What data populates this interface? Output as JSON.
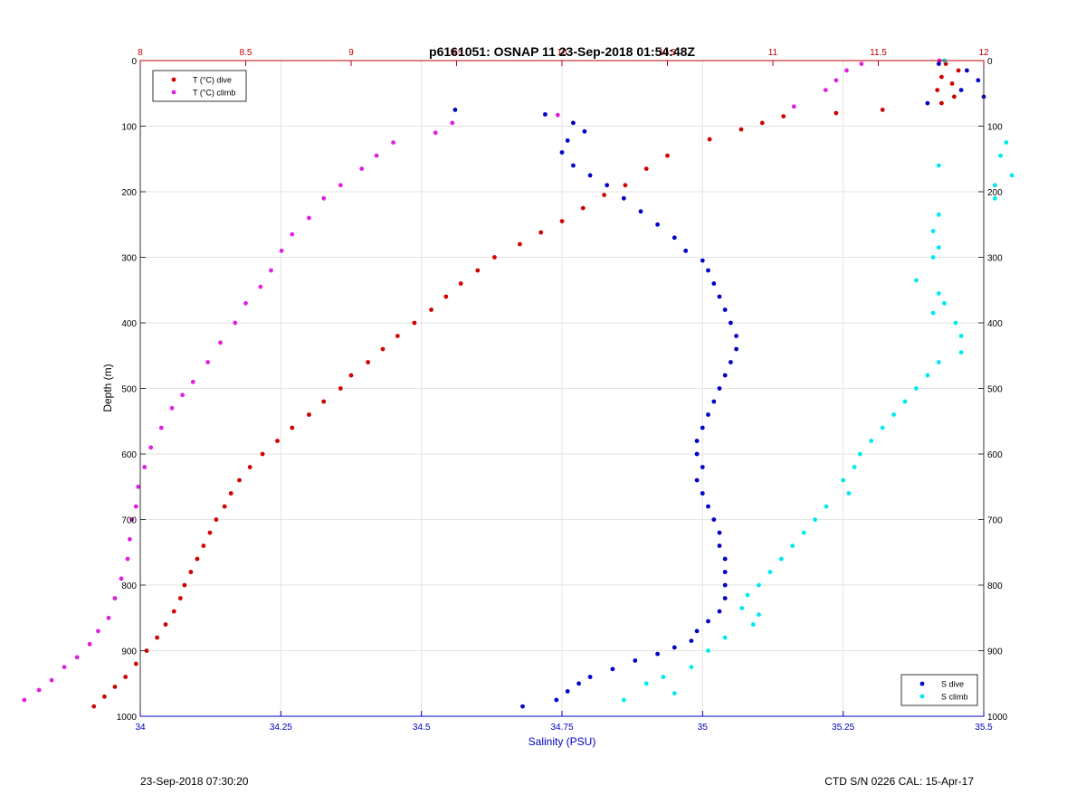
{
  "chart_data": {
    "type": "scatter",
    "title": "p6161051: OSNAP 11 23-Sep-2018 01:54:48Z",
    "ylabel": "Depth (m)",
    "xlabel": "Salinity (PSU)",
    "y_axis": {
      "range": [
        0,
        1000
      ],
      "reversed": true,
      "ticks": [
        0,
        100,
        200,
        300,
        400,
        500,
        600,
        700,
        800,
        900,
        1000
      ],
      "tick_labels": [
        "0",
        "100",
        "200",
        "300",
        "400",
        "500",
        "600",
        "700",
        "800",
        "900",
        "1000"
      ]
    },
    "salinity_axis": {
      "range": [
        34,
        35.5
      ],
      "position": "bottom",
      "color": "#0000c0",
      "ticks": [
        34,
        34.25,
        34.5,
        34.75,
        35,
        35.25,
        35.5
      ],
      "tick_labels": [
        "34",
        "34.25",
        "34.5",
        "34.75",
        "35",
        "35.25",
        "35.5"
      ]
    },
    "temperature_axis": {
      "range": [
        8,
        12
      ],
      "position": "top",
      "color": "#c00000",
      "ticks": [
        8,
        8.5,
        9,
        9.5,
        10,
        10.5,
        11,
        11.5,
        12
      ],
      "tick_labels": [
        "8",
        "8.5",
        "9",
        "9.5",
        "10",
        "10.5",
        "11",
        "11.5",
        "12"
      ]
    },
    "grid": true,
    "legends": [
      {
        "placement": "top-left",
        "entries": [
          {
            "label": "T (°C) dive",
            "color": "#d00000"
          },
          {
            "label": "T (°C) climb",
            "color": "#e020e0"
          }
        ]
      },
      {
        "placement": "bottom-right",
        "entries": [
          {
            "label": "S dive",
            "color": "#0000c8"
          },
          {
            "label": "S climb",
            "color": "#00e8f0"
          }
        ]
      }
    ],
    "series": [
      {
        "name": "T (°C) dive",
        "axis": "temperature",
        "color": "#d00000",
        "points": [
          [
            11.82,
            5
          ],
          [
            11.88,
            15
          ],
          [
            11.8,
            25
          ],
          [
            11.85,
            35
          ],
          [
            11.78,
            45
          ],
          [
            11.86,
            55
          ],
          [
            11.8,
            65
          ],
          [
            11.52,
            75
          ],
          [
            11.3,
            80
          ],
          [
            11.05,
            85
          ],
          [
            10.95,
            95
          ],
          [
            10.85,
            105
          ],
          [
            10.7,
            120
          ],
          [
            10.5,
            145
          ],
          [
            10.4,
            165
          ],
          [
            10.3,
            190
          ],
          [
            10.2,
            205
          ],
          [
            10.1,
            225
          ],
          [
            10.0,
            245
          ],
          [
            9.9,
            262
          ],
          [
            9.8,
            280
          ],
          [
            9.68,
            300
          ],
          [
            9.6,
            320
          ],
          [
            9.52,
            340
          ],
          [
            9.45,
            360
          ],
          [
            9.38,
            380
          ],
          [
            9.3,
            400
          ],
          [
            9.22,
            420
          ],
          [
            9.15,
            440
          ],
          [
            9.08,
            460
          ],
          [
            9.0,
            480
          ],
          [
            8.95,
            500
          ],
          [
            8.87,
            520
          ],
          [
            8.8,
            540
          ],
          [
            8.72,
            560
          ],
          [
            8.65,
            580
          ],
          [
            8.58,
            600
          ],
          [
            8.52,
            620
          ],
          [
            8.47,
            640
          ],
          [
            8.43,
            660
          ],
          [
            8.4,
            680
          ],
          [
            8.36,
            700
          ],
          [
            8.33,
            720
          ],
          [
            8.3,
            740
          ],
          [
            8.27,
            760
          ],
          [
            8.24,
            780
          ],
          [
            8.21,
            800
          ],
          [
            8.19,
            820
          ],
          [
            8.16,
            840
          ],
          [
            8.12,
            860
          ],
          [
            8.08,
            880
          ],
          [
            8.03,
            900
          ],
          [
            7.98,
            920
          ],
          [
            7.93,
            940
          ],
          [
            7.88,
            955
          ],
          [
            7.83,
            970
          ],
          [
            7.78,
            985
          ]
        ]
      },
      {
        "name": "T (°C) climb",
        "axis": "temperature",
        "color": "#e020e0",
        "points": [
          [
            11.79,
            0
          ],
          [
            11.42,
            5
          ],
          [
            11.35,
            15
          ],
          [
            11.3,
            30
          ],
          [
            11.25,
            45
          ],
          [
            11.1,
            70
          ],
          [
            9.98,
            83
          ],
          [
            9.48,
            95
          ],
          [
            9.4,
            110
          ],
          [
            9.2,
            125
          ],
          [
            9.12,
            145
          ],
          [
            9.05,
            165
          ],
          [
            8.95,
            190
          ],
          [
            8.87,
            210
          ],
          [
            8.8,
            240
          ],
          [
            8.72,
            265
          ],
          [
            8.67,
            290
          ],
          [
            8.62,
            320
          ],
          [
            8.57,
            345
          ],
          [
            8.5,
            370
          ],
          [
            8.45,
            400
          ],
          [
            8.38,
            430
          ],
          [
            8.32,
            460
          ],
          [
            8.25,
            490
          ],
          [
            8.2,
            510
          ],
          [
            8.15,
            530
          ],
          [
            8.1,
            560
          ],
          [
            8.05,
            590
          ],
          [
            8.02,
            620
          ],
          [
            7.99,
            650
          ],
          [
            7.98,
            680
          ],
          [
            7.96,
            700
          ],
          [
            7.95,
            730
          ],
          [
            7.94,
            760
          ],
          [
            7.91,
            790
          ],
          [
            7.88,
            820
          ],
          [
            7.85,
            850
          ],
          [
            7.8,
            870
          ],
          [
            7.76,
            890
          ],
          [
            7.7,
            910
          ],
          [
            7.64,
            925
          ],
          [
            7.58,
            945
          ],
          [
            7.52,
            960
          ],
          [
            7.45,
            975
          ]
        ]
      },
      {
        "name": "S dive",
        "axis": "salinity",
        "color": "#0000c8",
        "points": [
          [
            35.42,
            5
          ],
          [
            35.47,
            15
          ],
          [
            35.49,
            30
          ],
          [
            35.46,
            45
          ],
          [
            35.5,
            55
          ],
          [
            35.4,
            65
          ],
          [
            34.56,
            75
          ],
          [
            34.72,
            82
          ],
          [
            34.77,
            95
          ],
          [
            34.79,
            108
          ],
          [
            34.76,
            122
          ],
          [
            34.75,
            140
          ],
          [
            34.77,
            160
          ],
          [
            34.8,
            175
          ],
          [
            34.83,
            190
          ],
          [
            34.86,
            210
          ],
          [
            34.89,
            230
          ],
          [
            34.92,
            250
          ],
          [
            34.95,
            270
          ],
          [
            34.97,
            290
          ],
          [
            35.0,
            305
          ],
          [
            35.01,
            320
          ],
          [
            35.02,
            340
          ],
          [
            35.03,
            360
          ],
          [
            35.04,
            380
          ],
          [
            35.05,
            400
          ],
          [
            35.06,
            420
          ],
          [
            35.06,
            440
          ],
          [
            35.05,
            460
          ],
          [
            35.04,
            480
          ],
          [
            35.03,
            500
          ],
          [
            35.02,
            520
          ],
          [
            35.01,
            540
          ],
          [
            35.0,
            560
          ],
          [
            34.99,
            580
          ],
          [
            34.99,
            600
          ],
          [
            35.0,
            620
          ],
          [
            34.99,
            640
          ],
          [
            35.0,
            660
          ],
          [
            35.01,
            680
          ],
          [
            35.02,
            700
          ],
          [
            35.03,
            720
          ],
          [
            35.03,
            740
          ],
          [
            35.04,
            760
          ],
          [
            35.04,
            780
          ],
          [
            35.04,
            800
          ],
          [
            35.04,
            820
          ],
          [
            35.03,
            840
          ],
          [
            35.01,
            855
          ],
          [
            34.99,
            870
          ],
          [
            34.98,
            885
          ],
          [
            34.95,
            895
          ],
          [
            34.92,
            905
          ],
          [
            34.88,
            915
          ],
          [
            34.84,
            928
          ],
          [
            34.8,
            940
          ],
          [
            34.78,
            950
          ],
          [
            34.76,
            962
          ],
          [
            34.74,
            975
          ],
          [
            34.68,
            985
          ]
        ]
      },
      {
        "name": "S climb",
        "axis": "salinity",
        "color": "#00e8f0",
        "points": [
          [
            35.43,
            0
          ],
          [
            35.54,
            125
          ],
          [
            35.53,
            145
          ],
          [
            35.42,
            160
          ],
          [
            35.55,
            175
          ],
          [
            35.52,
            190
          ],
          [
            35.52,
            210
          ],
          [
            35.42,
            235
          ],
          [
            35.41,
            260
          ],
          [
            35.42,
            285
          ],
          [
            35.41,
            300
          ],
          [
            35.38,
            335
          ],
          [
            35.42,
            355
          ],
          [
            35.43,
            370
          ],
          [
            35.41,
            385
          ],
          [
            35.45,
            400
          ],
          [
            35.46,
            420
          ],
          [
            35.46,
            445
          ],
          [
            35.42,
            460
          ],
          [
            35.4,
            480
          ],
          [
            35.38,
            500
          ],
          [
            35.36,
            520
          ],
          [
            35.34,
            540
          ],
          [
            35.32,
            560
          ],
          [
            35.3,
            580
          ],
          [
            35.28,
            600
          ],
          [
            35.27,
            620
          ],
          [
            35.25,
            640
          ],
          [
            35.26,
            660
          ],
          [
            35.22,
            680
          ],
          [
            35.2,
            700
          ],
          [
            35.18,
            720
          ],
          [
            35.16,
            740
          ],
          [
            35.14,
            760
          ],
          [
            35.12,
            780
          ],
          [
            35.1,
            800
          ],
          [
            35.08,
            815
          ],
          [
            35.07,
            835
          ],
          [
            35.1,
            845
          ],
          [
            35.09,
            860
          ],
          [
            35.04,
            880
          ],
          [
            35.01,
            900
          ],
          [
            34.98,
            925
          ],
          [
            34.93,
            940
          ],
          [
            34.9,
            950
          ],
          [
            34.95,
            965
          ],
          [
            34.86,
            975
          ]
        ]
      }
    ]
  },
  "footer": {
    "left": "23-Sep-2018 07:30:20",
    "right": "CTD S/N 0226  CAL: 15-Apr-17"
  }
}
